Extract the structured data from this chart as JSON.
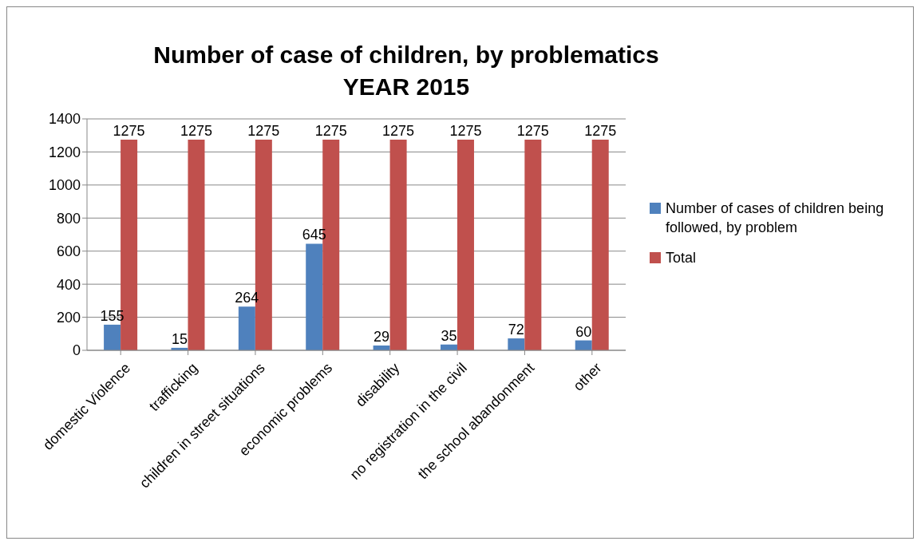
{
  "chart_data": {
    "type": "bar",
    "title": "Number of case of children, by problematics",
    "subtitle": "YEAR 2015",
    "categories": [
      "domestic Violence",
      "trafficking",
      "children in street situations",
      "economic problems",
      "disability",
      "no registration in the civil",
      "the school abandonment",
      "other"
    ],
    "series": [
      {
        "name": "Number of cases of children being followed, by problem",
        "color": "#4f81bd",
        "values": [
          155,
          15,
          264,
          645,
          29,
          35,
          72,
          60
        ]
      },
      {
        "name": "Total",
        "color": "#c0504d",
        "values": [
          1275,
          1275,
          1275,
          1275,
          1275,
          1275,
          1275,
          1275
        ]
      }
    ],
    "ylim": [
      0,
      1400
    ],
    "yticks": [
      0,
      200,
      400,
      600,
      800,
      1000,
      1200,
      1400
    ],
    "grid": "y",
    "legend": "right",
    "data_labels": true
  }
}
